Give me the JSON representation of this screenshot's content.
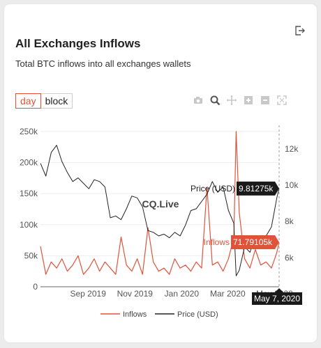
{
  "header": {
    "title": "All Exchanges Inflows",
    "subtitle": "Total BTC inflows into all exchanges wallets"
  },
  "toggle": {
    "day_label": "day",
    "block_label": "block",
    "selected": "day"
  },
  "toolbar": {
    "icons": [
      "camera-icon",
      "zoom-icon",
      "pan-icon",
      "zoom-in-icon",
      "zoom-out-icon",
      "autoscale-icon"
    ]
  },
  "colors": {
    "inflows": "#e0533a",
    "price": "#222222",
    "accent": "#e0533a"
  },
  "watermark": "CQ.Live",
  "chart_data": {
    "type": "line",
    "left_axis": {
      "ticks": [
        "0",
        "50k",
        "100k",
        "150k",
        "200k",
        "250k"
      ],
      "range": [
        0,
        260000
      ]
    },
    "right_axis": {
      "ticks": [
        "6k",
        "8k",
        "10k",
        "12k"
      ],
      "range": [
        4400,
        13300
      ]
    },
    "x_ticks": [
      "Sep 2019",
      "Nov 2019",
      "Jan 2020",
      "Mar 2020",
      "May 2020"
    ],
    "x_range": [
      "2019-07-01",
      "2020-05-07"
    ],
    "hover": {
      "date_label": "May 7, 2020",
      "price_label": "Price (USD)",
      "price_value": "9.81275k",
      "inflows_label": "Inflows",
      "inflows_value": "71.79105k"
    },
    "series": [
      {
        "name": "Inflows",
        "axis": "left",
        "x": [
          "2019-07-01",
          "2019-07-08",
          "2019-07-15",
          "2019-07-22",
          "2019-07-29",
          "2019-08-05",
          "2019-08-12",
          "2019-08-19",
          "2019-08-26",
          "2019-09-02",
          "2019-09-09",
          "2019-09-16",
          "2019-09-23",
          "2019-09-30",
          "2019-10-07",
          "2019-10-14",
          "2019-10-21",
          "2019-10-28",
          "2019-11-04",
          "2019-11-11",
          "2019-11-18",
          "2019-11-25",
          "2019-12-02",
          "2019-12-09",
          "2019-12-16",
          "2019-12-23",
          "2019-12-30",
          "2020-01-06",
          "2020-01-13",
          "2020-01-20",
          "2020-01-27",
          "2020-02-03",
          "2020-02-10",
          "2020-02-17",
          "2020-02-24",
          "2020-03-02",
          "2020-03-09",
          "2020-03-12",
          "2020-03-16",
          "2020-03-23",
          "2020-03-30",
          "2020-04-06",
          "2020-04-13",
          "2020-04-20",
          "2020-04-27",
          "2020-05-04",
          "2020-05-07"
        ],
        "values": [
          65000,
          20000,
          40000,
          30000,
          45000,
          25000,
          35000,
          50000,
          20000,
          30000,
          45000,
          25000,
          40000,
          30000,
          20000,
          80000,
          35000,
          25000,
          45000,
          20000,
          95000,
          40000,
          25000,
          30000,
          20000,
          45000,
          30000,
          35000,
          25000,
          40000,
          30000,
          160000,
          35000,
          40000,
          25000,
          45000,
          80000,
          250000,
          120000,
          45000,
          30000,
          60000,
          35000,
          40000,
          30000,
          55000,
          71791
        ]
      },
      {
        "name": "Price (USD)",
        "axis": "right",
        "x": [
          "2019-07-01",
          "2019-07-08",
          "2019-07-15",
          "2019-07-22",
          "2019-07-29",
          "2019-08-05",
          "2019-08-12",
          "2019-08-19",
          "2019-08-26",
          "2019-09-02",
          "2019-09-09",
          "2019-09-16",
          "2019-09-23",
          "2019-09-30",
          "2019-10-07",
          "2019-10-14",
          "2019-10-21",
          "2019-10-28",
          "2019-11-04",
          "2019-11-11",
          "2019-11-18",
          "2019-11-25",
          "2019-12-02",
          "2019-12-09",
          "2019-12-16",
          "2019-12-23",
          "2019-12-30",
          "2020-01-06",
          "2020-01-13",
          "2020-01-20",
          "2020-01-27",
          "2020-02-03",
          "2020-02-10",
          "2020-02-17",
          "2020-02-24",
          "2020-03-02",
          "2020-03-09",
          "2020-03-12",
          "2020-03-16",
          "2020-03-23",
          "2020-03-30",
          "2020-04-06",
          "2020-04-13",
          "2020-04-20",
          "2020-04-27",
          "2020-05-04",
          "2020-05-07"
        ],
        "values": [
          11200,
          10500,
          11800,
          12200,
          11300,
          10700,
          10200,
          10400,
          10100,
          9800,
          10300,
          10200,
          9900,
          8200,
          8300,
          8100,
          8700,
          9400,
          9300,
          8800,
          7500,
          7400,
          7200,
          7300,
          7100,
          7400,
          7200,
          7800,
          8600,
          8700,
          9100,
          9500,
          10200,
          9600,
          9900,
          8600,
          7900,
          5000,
          5300,
          6600,
          6300,
          7200,
          6900,
          7200,
          7700,
          9300,
          9813
        ]
      }
    ]
  }
}
